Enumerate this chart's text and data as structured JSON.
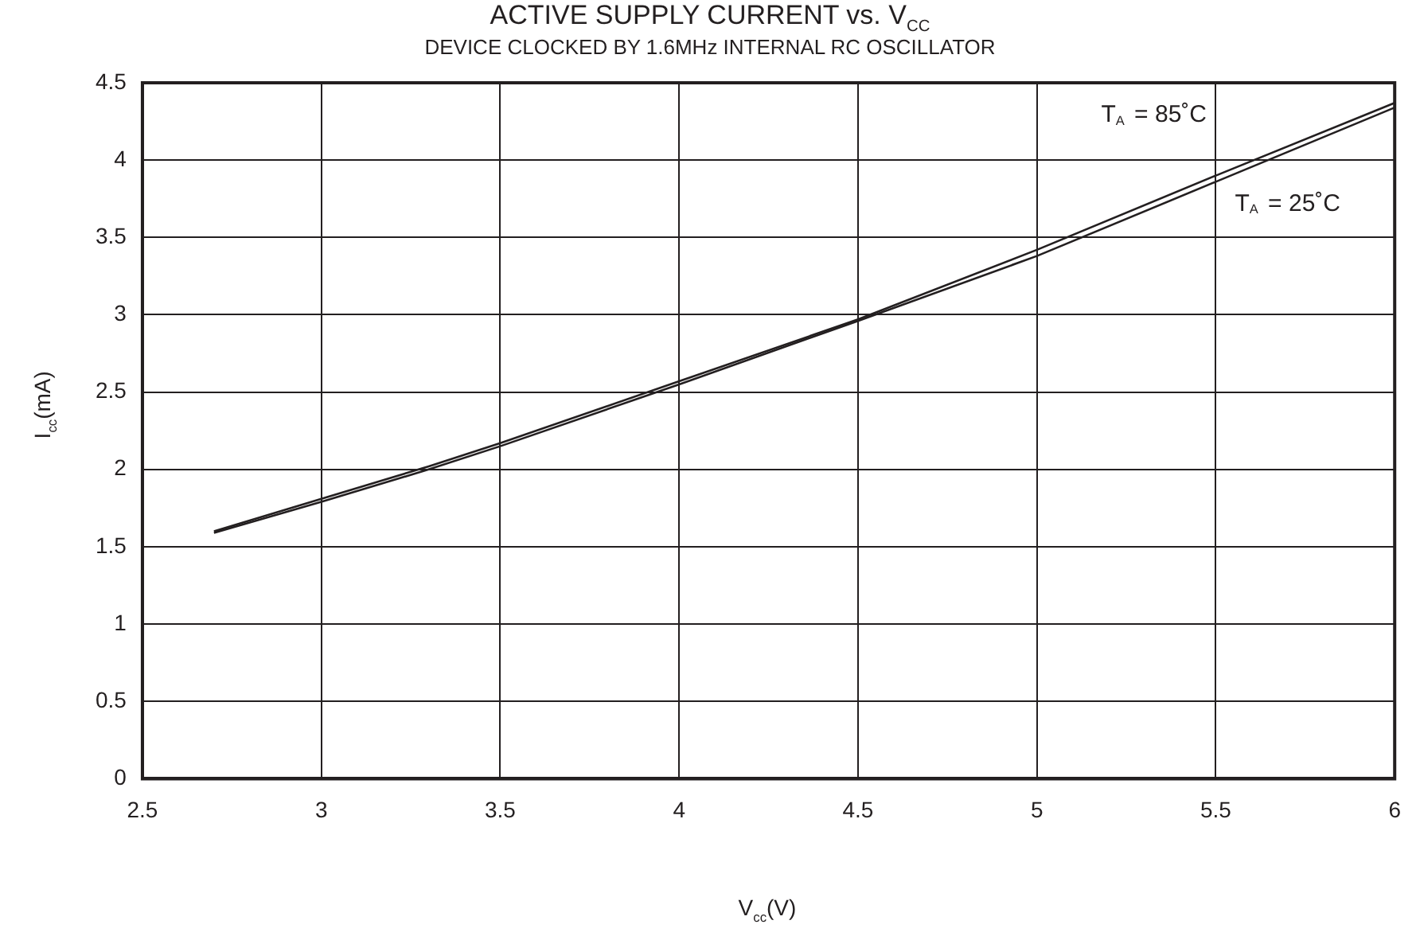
{
  "chart_data": {
    "type": "line",
    "title": "ACTIVE SUPPLY CURRENT vs. V$_{CC}$",
    "subtitle": "DEVICE CLOCKED BY 1.6MHz INTERNAL RC OSCILLATOR",
    "xlabel": "V$_{cc}$(V)",
    "ylabel": "I$_{cc}$(mA)",
    "x": [
      2.7,
      3,
      3.3,
      3.5,
      4,
      4.5,
      5,
      5.5,
      6
    ],
    "series": [
      {
        "name": "T$_{A}$ = 85˚C",
        "color": "#231f20",
        "values": [
          1.6,
          1.81,
          2.02,
          2.17,
          2.57,
          2.97,
          3.42,
          3.9,
          4.37
        ]
      },
      {
        "name": "T$_{A}$ = 25˚C",
        "color": "#231f20",
        "values": [
          1.59,
          1.79,
          2.0,
          2.15,
          2.55,
          2.96,
          3.38,
          3.86,
          4.34
        ]
      }
    ],
    "xlim": [
      2.5,
      6
    ],
    "xticks": [
      2.5,
      3,
      3.5,
      4,
      4.5,
      5,
      5.5,
      6
    ],
    "ylim": [
      0,
      4.5
    ],
    "yticks": [
      0,
      0.5,
      1,
      1.5,
      2,
      2.5,
      3,
      3.5,
      4,
      4.5
    ],
    "grid": true,
    "legend": false,
    "marker": "none",
    "line_style": "solid"
  }
}
